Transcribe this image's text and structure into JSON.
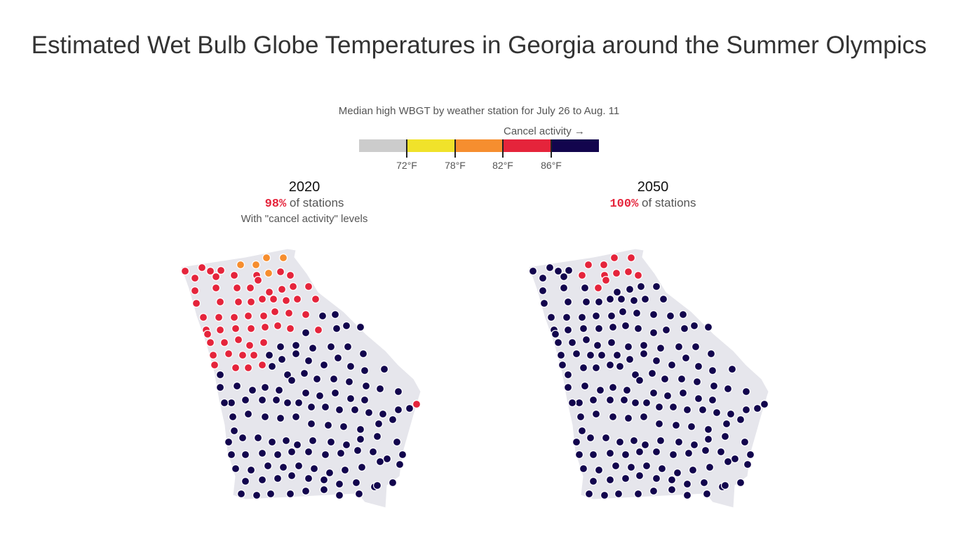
{
  "title": "Estimated Wet Bulb Globe Temperatures in Georgia around the Summer Olympics",
  "subtitle": "Median high WBGT by weather station for July 26 to Aug. 11",
  "legend": {
    "note": "Cancel activity →",
    "colors": [
      "#cccccc",
      "#f0e22a",
      "#f68e2f",
      "#e5243b",
      "#12054d"
    ],
    "ticks": [
      "72°F",
      "78°F",
      "82°F",
      "86°F"
    ]
  },
  "state_fill": "#e6e6ec",
  "panels": [
    {
      "year": "2020",
      "pct": "98%",
      "stat_text": " of stations",
      "note": "With \"cancel activity\" levels"
    },
    {
      "year": "2050",
      "pct": "100%",
      "stat_text": " of stations",
      "note": ""
    }
  ]
}
